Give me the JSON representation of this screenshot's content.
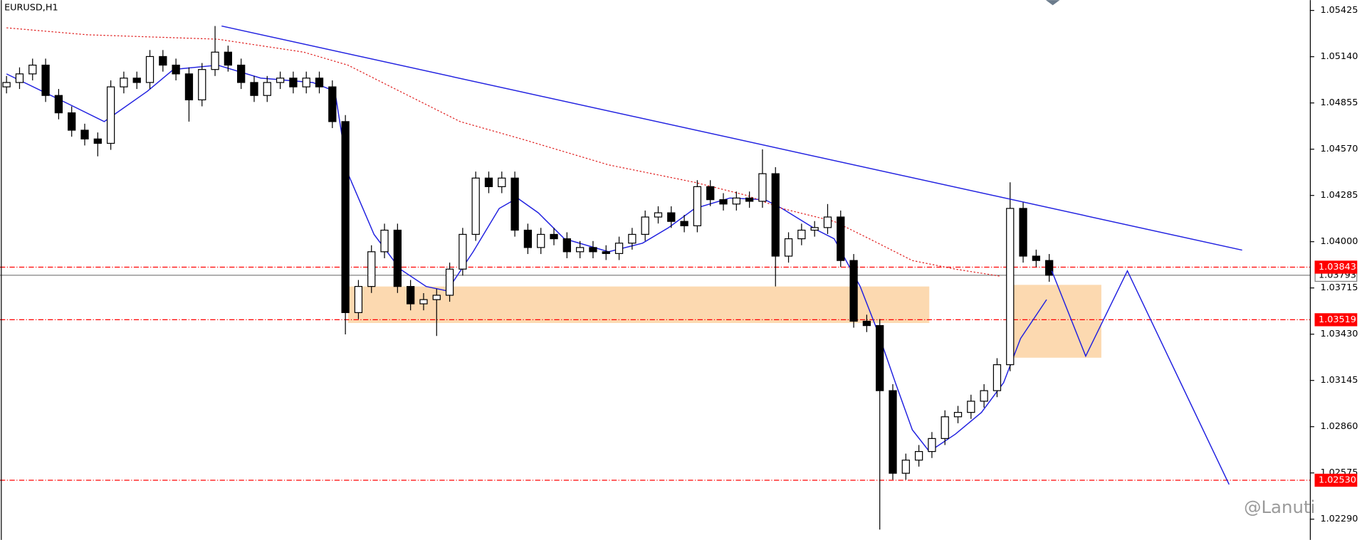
{
  "chart_data": {
    "type": "candlestick",
    "title": "EURUSD,H1",
    "watermark": "@Lanuti",
    "xlim": [
      -0.5,
      100
    ],
    "ylim": [
      1.02162,
      1.05489
    ],
    "yticks": [
      1.05425,
      {
        "value": 1.0514,
        "label": "1.05140"
      },
      1.04855,
      {
        "value": 1.0457,
        "label": "1.04570"
      },
      1.04285,
      {
        "value": 1.04,
        "label": "1.04000"
      },
      1.03715,
      {
        "value": 1.0343,
        "label": "1.03430"
      },
      1.03145,
      {
        "value": 1.0286,
        "label": "1.02860"
      },
      1.02575,
      {
        "value": 1.0229,
        "label": "1.02290"
      }
    ],
    "up_color": "#ffffff",
    "down_color": "#000000",
    "wick_color": "#000000",
    "open": [
      1.04954,
      1.04981,
      1.05034,
      1.05088,
      1.04901,
      1.04794,
      1.04687,
      1.04633,
      1.04606,
      1.04954,
      1.05008,
      1.04981,
      1.05141,
      1.05088,
      1.05034,
      1.04874,
      1.05061,
      1.05168,
      1.05088,
      1.04981,
      1.04901,
      1.04981,
      1.05008,
      1.04954,
      1.05008,
      1.04954,
      1.0474,
      1.03563,
      1.03724,
      1.03938,
      1.04071,
      1.03724,
      1.03617,
      1.03643,
      1.0367,
      1.03831,
      1.04045,
      1.04392,
      1.04339,
      1.04392,
      1.04071,
      1.03964,
      1.04045,
      1.04018,
      1.03938,
      1.03964,
      1.03938,
      1.03927,
      1.03991,
      1.04045,
      1.04152,
      1.04178,
      1.04125,
      1.04098,
      1.04339,
      1.04259,
      1.04232,
      1.04269,
      1.04249,
      1.04419,
      1.03911,
      1.04018,
      1.04071,
      1.04087,
      1.04152,
      1.03884,
      1.0351,
      1.03483,
      1.03082,
      1.02573,
      1.02654,
      1.02707,
      1.02787,
      1.02921,
      1.02948,
      1.03017,
      1.03082,
      1.03242,
      1.04205,
      1.03911,
      1.03884
    ],
    "high": [
      1.05021,
      1.05074,
      1.05128,
      1.05128,
      1.04941,
      1.04834,
      1.04727,
      1.04673,
      1.04994,
      1.05048,
      1.05048,
      1.05181,
      1.05181,
      1.05128,
      1.05074,
      1.05101,
      1.05329,
      1.05208,
      1.05128,
      1.05021,
      1.05021,
      1.05048,
      1.05048,
      1.05048,
      1.05048,
      1.04994,
      1.0478,
      1.03764,
      1.03978,
      1.04111,
      1.04111,
      1.03764,
      1.03683,
      1.0371,
      1.03871,
      1.04085,
      1.04432,
      1.04432,
      1.04432,
      1.04432,
      1.04111,
      1.04085,
      1.04085,
      1.04058,
      1.04004,
      1.04004,
      1.03978,
      1.04031,
      1.04085,
      1.04192,
      1.04218,
      1.04218,
      1.04165,
      1.04379,
      1.04379,
      1.04299,
      1.04309,
      1.04309,
      1.04569,
      1.04459,
      1.04058,
      1.04111,
      1.04127,
      1.04232,
      1.04192,
      1.03924,
      1.0355,
      1.03523,
      1.03122,
      1.02694,
      1.02747,
      1.02827,
      1.02961,
      1.02988,
      1.03057,
      1.03122,
      1.03282,
      1.04366,
      1.04245,
      1.03951,
      1.03924
    ],
    "low": [
      1.04914,
      1.04941,
      1.04994,
      1.04861,
      1.04754,
      1.04647,
      1.04593,
      1.04526,
      1.04566,
      1.04914,
      1.04941,
      1.04941,
      1.05048,
      1.04994,
      1.0474,
      1.04834,
      1.05021,
      1.05048,
      1.04941,
      1.04861,
      1.04861,
      1.04941,
      1.04914,
      1.04914,
      1.04914,
      1.047,
      1.03429,
      1.03523,
      1.03684,
      1.03898,
      1.03684,
      1.03577,
      1.03577,
      1.03419,
      1.0363,
      1.03791,
      1.04005,
      1.04299,
      1.04299,
      1.04031,
      1.03924,
      1.03924,
      1.03978,
      1.03898,
      1.03898,
      1.03898,
      1.03887,
      1.03887,
      1.03951,
      1.04005,
      1.04112,
      1.04085,
      1.04058,
      1.04058,
      1.04219,
      1.04192,
      1.04192,
      1.04209,
      1.04209,
      1.03724,
      1.03871,
      1.03978,
      1.04031,
      1.04047,
      1.03844,
      1.0347,
      1.03443,
      1.02226,
      1.02533,
      1.02533,
      1.02614,
      1.02667,
      1.02747,
      1.02881,
      1.02908,
      1.02977,
      1.03042,
      1.03202,
      1.03871,
      1.03844,
      1.03753
    ],
    "close": [
      1.04981,
      1.05034,
      1.05088,
      1.04901,
      1.04794,
      1.04687,
      1.04633,
      1.04606,
      1.04954,
      1.05008,
      1.04981,
      1.05141,
      1.05088,
      1.05034,
      1.04874,
      1.05061,
      1.05168,
      1.05088,
      1.04981,
      1.04901,
      1.04981,
      1.05008,
      1.04954,
      1.05008,
      1.04954,
      1.0474,
      1.03563,
      1.03724,
      1.03938,
      1.04071,
      1.03724,
      1.03617,
      1.03643,
      1.0367,
      1.03831,
      1.04045,
      1.04392,
      1.04339,
      1.04392,
      1.04071,
      1.03964,
      1.04045,
      1.04018,
      1.03938,
      1.03964,
      1.03938,
      1.03927,
      1.03991,
      1.04045,
      1.04152,
      1.04178,
      1.04125,
      1.04098,
      1.04339,
      1.04259,
      1.04232,
      1.04269,
      1.04249,
      1.04419,
      1.03911,
      1.04018,
      1.04071,
      1.04087,
      1.04152,
      1.03884,
      1.0351,
      1.03483,
      1.03082,
      1.02573,
      1.02654,
      1.02707,
      1.02787,
      1.02921,
      1.02948,
      1.03017,
      1.03082,
      1.03242,
      1.04205,
      1.03911,
      1.03884,
      1.03793
    ],
    "series": [
      {
        "color": "#2020e0",
        "dash": false,
        "x": [
          0,
          4.8,
          7.5,
          10.8,
          12.8,
          16.2,
          19.5,
          23.5,
          25.2,
          26.2,
          28.2,
          30.2,
          32.2,
          33.8,
          35.8,
          37.8,
          39.2,
          40.8,
          42.8,
          46.2,
          48.8,
          50.8,
          52.8,
          55.5,
          58.2,
          59.5,
          62.2,
          63.5,
          65.5,
          66.8,
          68.2,
          69.5,
          70.8,
          72.8,
          74.8,
          76.5,
          77.8,
          79.8
        ],
        "values": [
          1.05034,
          1.04847,
          1.0474,
          1.04927,
          1.05061,
          1.05088,
          1.05008,
          1.04981,
          1.04927,
          1.04419,
          1.04045,
          1.03831,
          1.03724,
          1.03697,
          1.03938,
          1.04205,
          1.04269,
          1.04178,
          1.04018,
          1.03938,
          1.03991,
          1.04087,
          1.04205,
          1.04269,
          1.04259,
          1.04205,
          1.04071,
          1.04018,
          1.03724,
          1.03456,
          1.03131,
          1.02841,
          1.02707,
          1.02814,
          1.02948,
          1.03131,
          1.03403,
          1.03643
        ]
      },
      {
        "color": "#e02020",
        "dash": true,
        "x": [
          0,
          6.2,
          16.2,
          22.8,
          26.2,
          29.5,
          34.8,
          39.5,
          46.2,
          52.8,
          56.8,
          59.5,
          63.5,
          66.2,
          69.5,
          72.8,
          76.2
        ],
        "values": [
          1.05318,
          1.05275,
          1.05248,
          1.05168,
          1.05088,
          1.04954,
          1.0474,
          1.04633,
          1.04473,
          1.04366,
          1.04285,
          1.04205,
          1.04125,
          1.04018,
          1.03884,
          1.03831,
          1.03788
        ]
      }
    ],
    "drawings": [
      {
        "color": "#2020e0",
        "x": [
          16.5,
          94.8
        ],
        "values": [
          1.05329,
          1.03948
        ]
      },
      {
        "color": "#2020e0",
        "x": [
          80.2,
          82.8,
          86.0,
          93.8
        ],
        "values": [
          1.0382,
          1.03295,
          1.0382,
          1.02504
        ]
      }
    ],
    "zones": [
      {
        "color": "#fcd9b0",
        "x": [
          26.2,
          70.8
        ],
        "values": [
          1.03724,
          1.03499
        ]
      },
      {
        "color": "#fcd9b0",
        "x": [
          76.8,
          84.0
        ],
        "values": [
          1.03734,
          1.03285
        ]
      }
    ],
    "levels": [
      {
        "value": 1.03793,
        "color": "#808080",
        "style": "solid",
        "text_color": "#000000"
      },
      {
        "value": 1.03843,
        "color": "#ff0000",
        "style": "dash",
        "text_color": "#ffffff"
      },
      {
        "value": 1.03519,
        "color": "#ff0000",
        "style": "dash",
        "text_color": "#ffffff"
      },
      {
        "value": 1.0253,
        "label": "1.02530",
        "color": "#ff0000",
        "style": "dash",
        "text_color": "#ffffff"
      }
    ]
  }
}
